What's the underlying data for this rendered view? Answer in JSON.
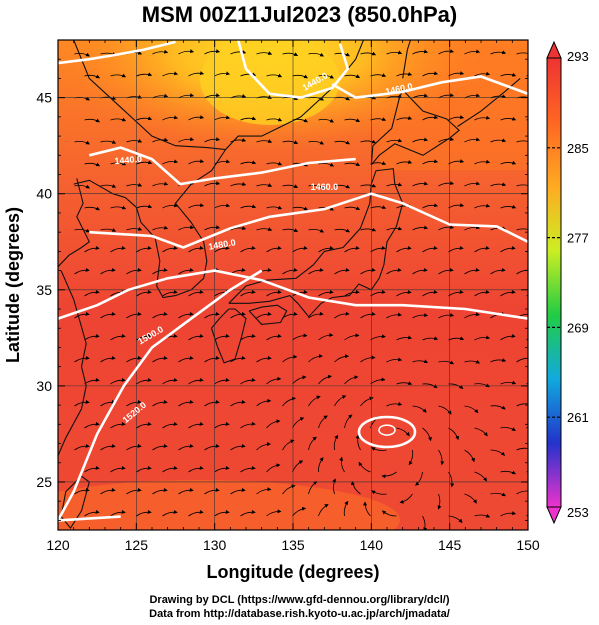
{
  "title": "MSM 00Z11Jul2023 (850.0hPa)",
  "x_axis": {
    "label": "Longitude (degrees)",
    "ticks": [
      "120",
      "125",
      "130",
      "135",
      "140",
      "145",
      "150"
    ]
  },
  "y_axis": {
    "label": "Latitude  (degrees)",
    "ticks": [
      "25",
      "30",
      "35",
      "40",
      "45"
    ]
  },
  "colorbar": {
    "ticks": [
      "253",
      "261",
      "269",
      "277",
      "285",
      "293"
    ],
    "colors": [
      "#ee33cc",
      "#2233cc",
      "#11aadd",
      "#22cc44",
      "#ccee22",
      "#ffaa22",
      "#ff6622",
      "#ee3333"
    ]
  },
  "contour_labels": [
    "1440.0",
    "1440.0",
    "1460.0",
    "1460.0",
    "1480.0",
    "1500.0",
    "1520.0"
  ],
  "map": {
    "lon_range": [
      120,
      150
    ],
    "lat_range": [
      22.5,
      48
    ],
    "colors": {
      "warm": "#ee4433",
      "mid": "#ff7722",
      "cool": "#ffaa22",
      "cold": "#ffd022"
    }
  },
  "credits": {
    "line1": "Drawing by DCL (https://www.gfd-dennou.org/library/dcl/)",
    "line2": "Data from http://database.rish.kyoto-u.ac.jp/arch/jmadata/"
  }
}
